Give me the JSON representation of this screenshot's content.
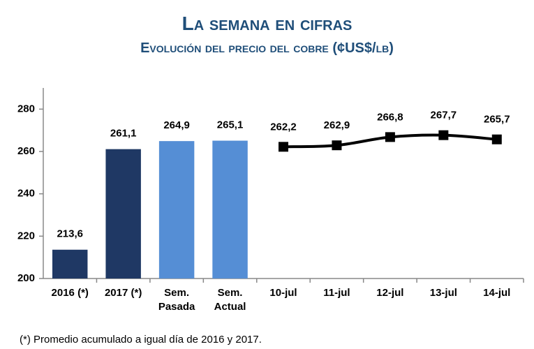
{
  "chart_data": {
    "type": "combo",
    "title": "La semana en cifras",
    "subtitle": "Evolución del precio del cobre  (¢US$/lb)",
    "footnote": "(*) Promedio acumulado a igual día de 2016 y 2017.",
    "categories": [
      "2016 (*)",
      "2017 (*)",
      "Sem. Pasada",
      "Sem. Actual",
      "10-jul",
      "11-jul",
      "12-jul",
      "13-jul",
      "14-jul"
    ],
    "series": [
      {
        "type": "bar",
        "color": "#1f3864",
        "values": [
          213.6,
          261.1,
          null,
          null,
          null,
          null,
          null,
          null,
          null
        ],
        "value_labels": [
          "213,6",
          "261,1",
          null,
          null,
          null,
          null,
          null,
          null,
          null
        ]
      },
      {
        "type": "bar",
        "color": "#558ed5",
        "values": [
          null,
          null,
          264.9,
          265.1,
          null,
          null,
          null,
          null,
          null
        ],
        "value_labels": [
          null,
          null,
          "264,9",
          "265,1",
          null,
          null,
          null,
          null,
          null
        ]
      },
      {
        "type": "line",
        "color": "#000000",
        "values": [
          null,
          null,
          null,
          null,
          262.2,
          262.9,
          266.8,
          267.7,
          265.7
        ],
        "value_labels": [
          null,
          null,
          null,
          null,
          "262,2",
          "262,9",
          "266,8",
          "267,7",
          "265,7"
        ]
      }
    ],
    "ylim": [
      200,
      290
    ],
    "yticks": [
      200,
      220,
      240,
      260,
      280
    ],
    "grid": false
  }
}
